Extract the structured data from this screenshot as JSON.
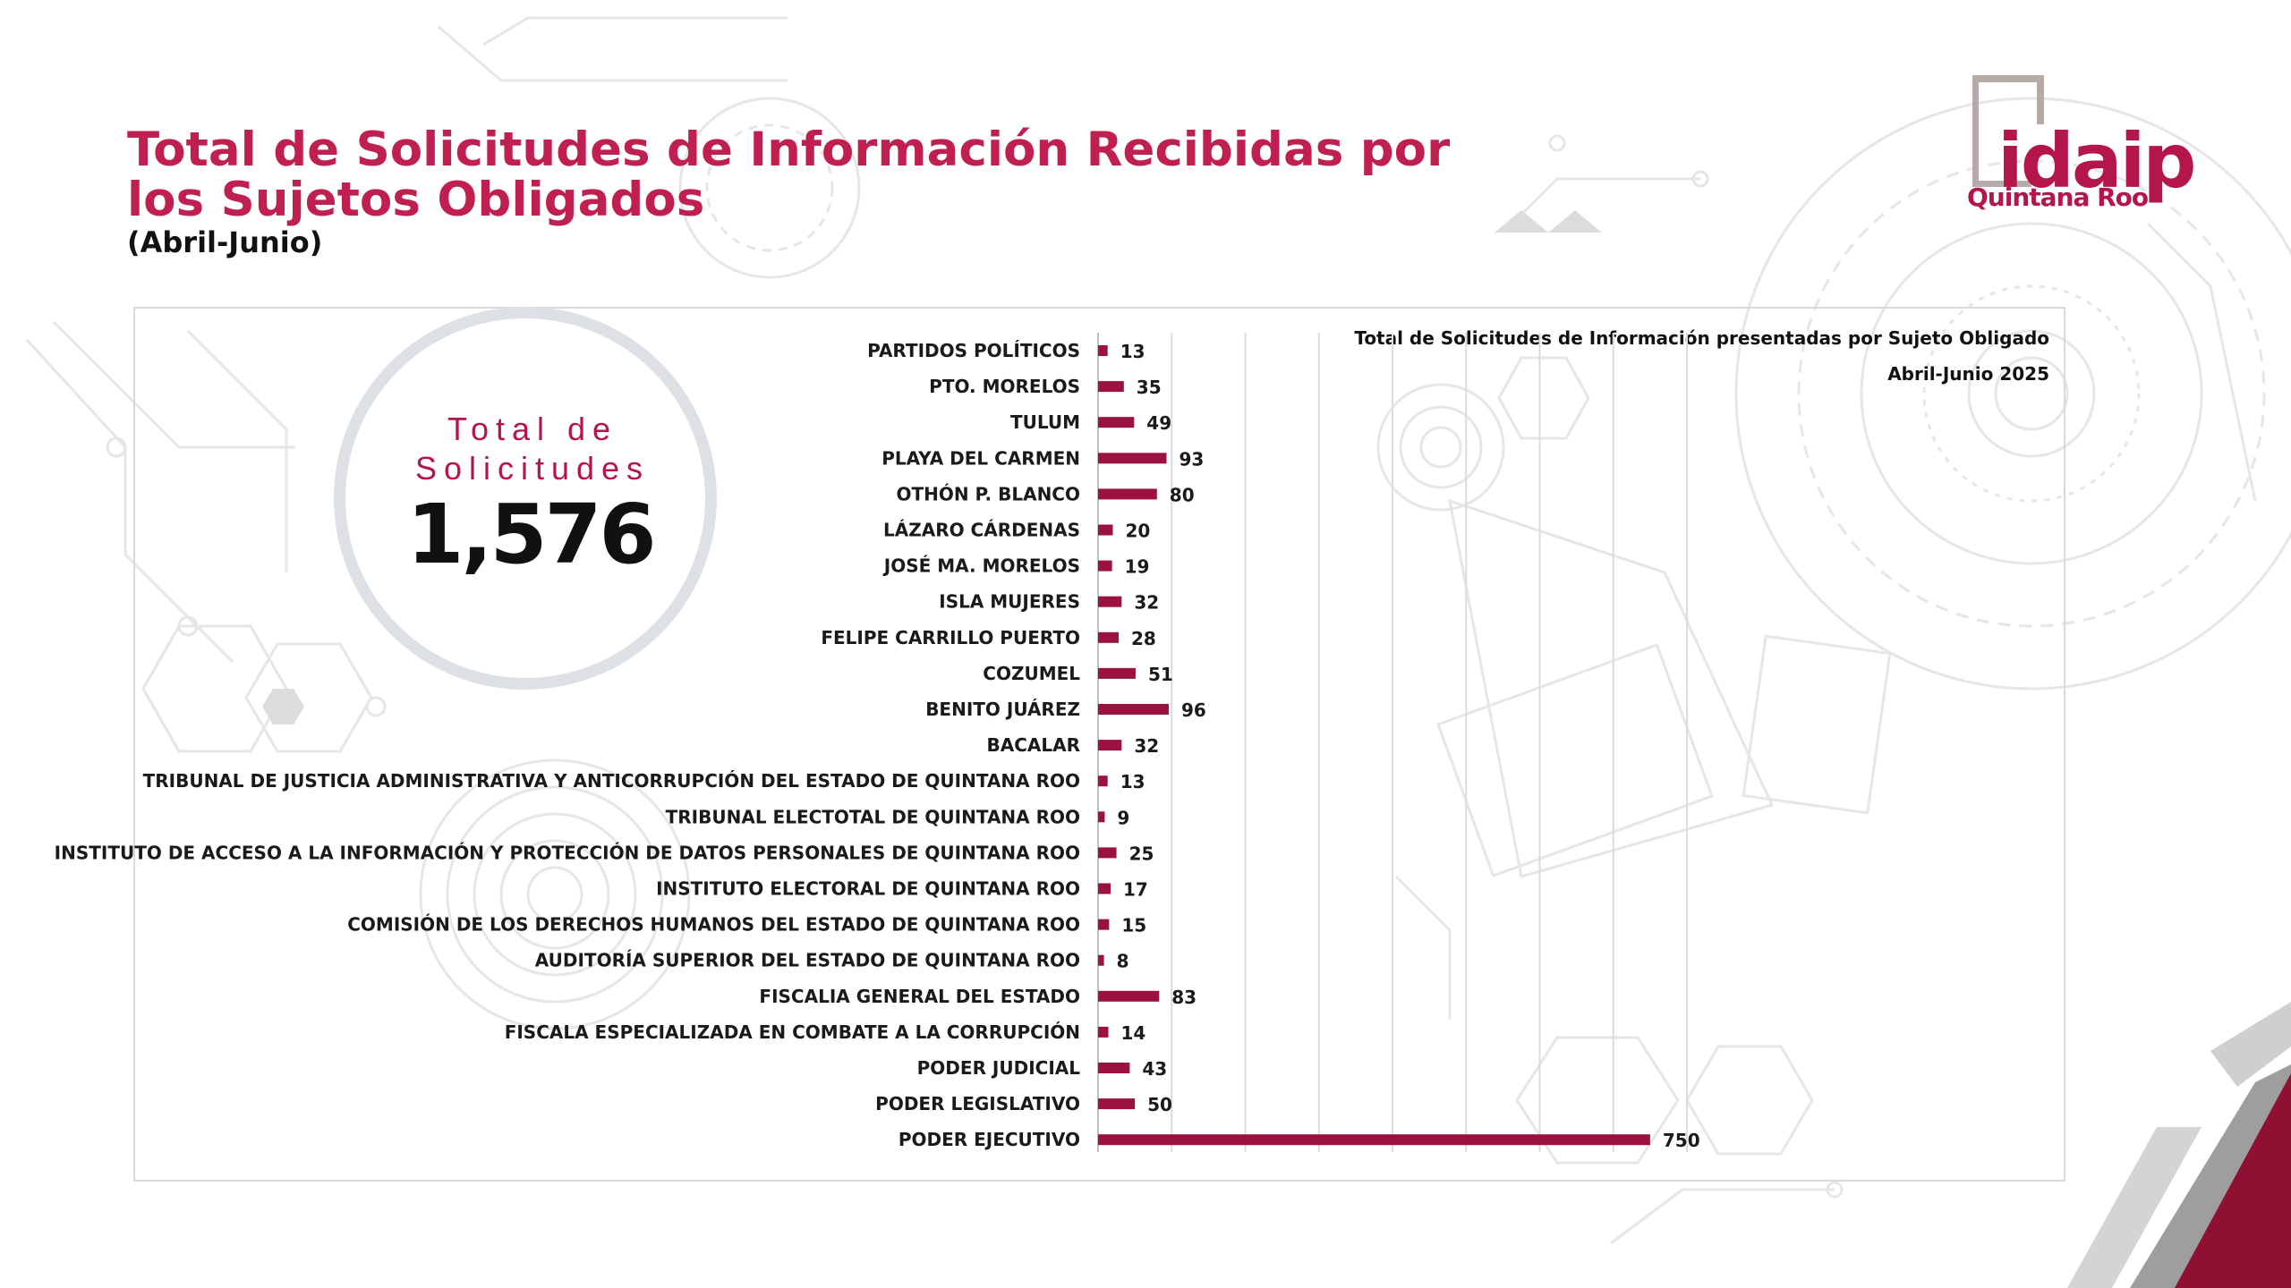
{
  "header": {
    "title": "Total de Solicitudes de Información Recibidas por los Sujetos Obligados",
    "subtitle": "(Abril-Junio)"
  },
  "logo": {
    "word": "idaip",
    "place": "Quintana Roo"
  },
  "kpi": {
    "label": "Total de Solicitudes",
    "value": "1,576"
  },
  "colors": {
    "accent": "#c0204f",
    "bar": "#9b1240",
    "ring": "#dde0e4"
  },
  "chart_data": {
    "type": "bar",
    "orientation": "horizontal",
    "title": "Total de Solicitudes de Información presentadas por Sujeto Obligado",
    "subtitle": "Abril-Junio 2025",
    "categories": [
      "PARTIDOS POLÍTICOS",
      "PTO. MORELOS",
      "TULUM",
      "PLAYA DEL CARMEN",
      "OTHÓN P. BLANCO",
      "LÁZARO CÁRDENAS",
      "JOSÉ MA. MORELOS",
      "ISLA MUJERES",
      "FELIPE CARRILLO PUERTO",
      "COZUMEL",
      "BENITO JUÁREZ",
      "BACALAR",
      "TRIBUNAL DE JUSTICIA ADMINISTRATIVA Y ANTICORRUPCIÓN DEL ESTADO DE QUINTANA ROO",
      "TRIBUNAL ELECTOTAL DE QUINTANA ROO",
      "INSTITUTO DE ACCESO A LA INFORMACIÓN Y PROTECCIÓN DE DATOS PERSONALES DE QUINTANA ROO",
      "INSTITUTO ELECTORAL DE QUINTANA ROO",
      "COMISIÓN DE LOS DERECHOS HUMANOS DEL ESTADO DE QUINTANA ROO",
      "AUDITORÍA SUPERIOR DEL ESTADO DE QUINTANA ROO",
      "FISCALIA GENERAL DEL ESTADO",
      "FISCALA ESPECIALIZADA EN COMBATE A LA CORRUPCIÓN",
      "PODER JUDICIAL",
      "PODER LEGISLATIVO",
      "PODER EJECUTIVO"
    ],
    "values": [
      13,
      35,
      49,
      93,
      80,
      20,
      19,
      32,
      28,
      51,
      96,
      32,
      13,
      9,
      25,
      17,
      15,
      8,
      83,
      14,
      43,
      50,
      750
    ],
    "xlim": [
      0,
      800
    ],
    "grid": true,
    "grid_step": 100,
    "data_labels": true
  }
}
